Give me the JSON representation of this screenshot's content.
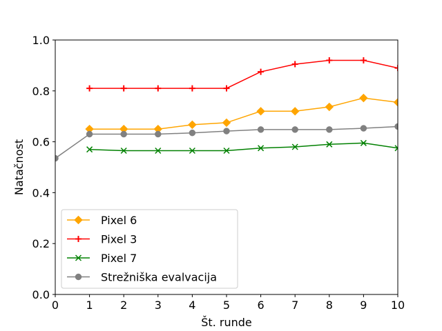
{
  "chart_data": {
    "type": "line",
    "title": "",
    "xlabel": "Št. runde",
    "ylabel": "Natačnost",
    "xlim": [
      0,
      10
    ],
    "ylim": [
      0.0,
      1.0
    ],
    "x_ticks": [
      "0",
      "1",
      "2",
      "3",
      "4",
      "5",
      "6",
      "7",
      "8",
      "9",
      "10"
    ],
    "y_ticks": [
      "0.0",
      "0.2",
      "0.4",
      "0.6",
      "0.8",
      "1.0"
    ],
    "grid": false,
    "legend_position": "lower-left",
    "series": [
      {
        "name": "Pixel 6",
        "color": "#ffa500",
        "marker": "diamond",
        "x": [
          1,
          2,
          3,
          4,
          5,
          6,
          7,
          8,
          9,
          10
        ],
        "values": [
          0.65,
          0.65,
          0.65,
          0.667,
          0.675,
          0.72,
          0.72,
          0.737,
          0.772,
          0.755
        ]
      },
      {
        "name": "Pixel 3",
        "color": "#ff0000",
        "marker": "plus",
        "x": [
          1,
          2,
          3,
          4,
          5,
          6,
          7,
          8,
          9,
          10
        ],
        "values": [
          0.81,
          0.81,
          0.81,
          0.81,
          0.81,
          0.875,
          0.905,
          0.92,
          0.92,
          0.89
        ]
      },
      {
        "name": "Pixel 7",
        "color": "#008000",
        "marker": "x",
        "x": [
          1,
          2,
          3,
          4,
          5,
          6,
          7,
          8,
          9,
          10
        ],
        "values": [
          0.57,
          0.565,
          0.565,
          0.565,
          0.565,
          0.575,
          0.58,
          0.59,
          0.595,
          0.575
        ]
      },
      {
        "name": "Strežniška evalvacija",
        "color": "#808080",
        "marker": "circle",
        "x": [
          0,
          1,
          2,
          3,
          4,
          5,
          6,
          7,
          8,
          9,
          10
        ],
        "values": [
          0.535,
          0.63,
          0.63,
          0.63,
          0.635,
          0.642,
          0.648,
          0.648,
          0.648,
          0.653,
          0.66
        ]
      }
    ]
  }
}
